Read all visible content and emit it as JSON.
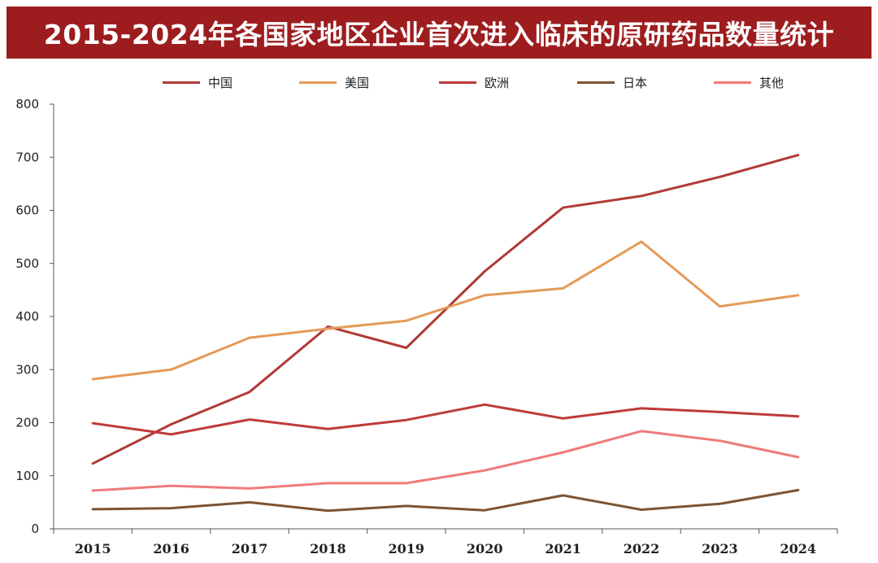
{
  "header": {
    "title": "2015-2024年各国家地区企业首次进入临床的原研药品数量统计",
    "background": "#9d1d1f"
  },
  "chart_data": {
    "type": "line",
    "title": "2015-2024年各国家地区企业首次进入临床的原研药品数量统计",
    "xlabel": "",
    "ylabel": "",
    "categories": [
      "2015",
      "2016",
      "2017",
      "2018",
      "2019",
      "2020",
      "2021",
      "2022",
      "2023",
      "2024"
    ],
    "ylim": [
      0,
      800
    ],
    "yticks": [
      0,
      100,
      200,
      300,
      400,
      500,
      600,
      700,
      800
    ],
    "grid": false,
    "legend_position": "top",
    "series": [
      {
        "name": "中国",
        "color": "#b03a36",
        "values": [
          123,
          197,
          258,
          381,
          341,
          485,
          605,
          627,
          663,
          704
        ]
      },
      {
        "name": "美国",
        "color": "#e59a58",
        "values": [
          282,
          300,
          360,
          377,
          392,
          440,
          453,
          541,
          419,
          440
        ]
      },
      {
        "name": "欧洲",
        "color": "#bf3a3b",
        "values": [
          199,
          178,
          206,
          188,
          205,
          234,
          208,
          227,
          220,
          212
        ]
      },
      {
        "name": "日本",
        "color": "#7d5433",
        "values": [
          37,
          39,
          50,
          34,
          43,
          35,
          63,
          36,
          47,
          73
        ]
      },
      {
        "name": "其他",
        "color": "#f07a7a",
        "values": [
          72,
          81,
          76,
          86,
          86,
          110,
          144,
          184,
          166,
          135
        ]
      }
    ]
  }
}
